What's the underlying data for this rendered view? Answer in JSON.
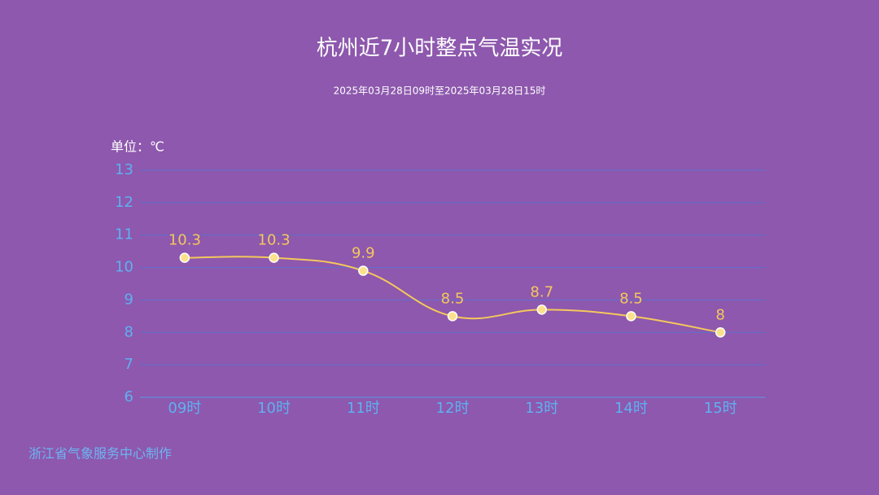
{
  "chart_data": {
    "type": "line",
    "title": "杭州近7小时整点气温实况",
    "subtitle": "2025年03月28日09时至2025年03月28日15时",
    "unit_label": "单位：℃",
    "categories": [
      "09时",
      "10时",
      "11时",
      "12时",
      "13时",
      "14时",
      "15时"
    ],
    "series": [
      {
        "name": "气温",
        "color": "#f5c75c",
        "values": [
          10.3,
          10.3,
          9.9,
          8.5,
          8.7,
          8.5,
          8
        ]
      }
    ],
    "ylim": [
      6,
      13
    ],
    "yticks": [
      6,
      7,
      8,
      9,
      10,
      11,
      12,
      13
    ],
    "grid": true,
    "footer": "浙江省气象服务中心制作"
  }
}
